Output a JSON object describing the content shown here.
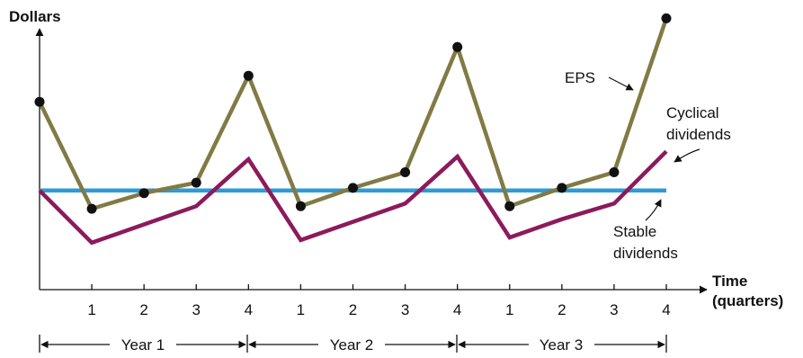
{
  "chart_data": {
    "type": "line",
    "ylabel": "Dollars",
    "xlabel_lines": [
      "Time",
      "(quarters)"
    ],
    "tick_labels": [
      "1",
      "2",
      "3",
      "4",
      "1",
      "2",
      "3",
      "4",
      "1",
      "2",
      "3",
      "4"
    ],
    "year_labels": [
      "Year 1",
      "Year 2",
      "Year 3"
    ],
    "x": [
      0,
      1,
      2,
      3,
      4,
      5,
      6,
      7,
      8,
      9,
      10,
      11,
      12
    ],
    "ylim": [
      0,
      10
    ],
    "series": [
      {
        "name": "EPS",
        "label_lines": [
          "EPS"
        ],
        "color": "#827A45",
        "markers": true,
        "values": [
          7.2,
          3.1,
          3.7,
          4.1,
          8.2,
          3.2,
          3.9,
          4.5,
          9.3,
          3.2,
          3.9,
          4.5,
          10.4
        ]
      },
      {
        "name": "Cyclical dividends",
        "label_lines": [
          "Cyclical",
          "dividends"
        ],
        "color": "#8C1A5C",
        "markers": false,
        "values": [
          3.8,
          1.8,
          2.5,
          3.2,
          5.0,
          1.9,
          2.6,
          3.3,
          5.1,
          2.0,
          2.7,
          3.3,
          5.3
        ]
      },
      {
        "name": "Stable dividends",
        "label_lines": [
          "Stable",
          "dividends"
        ],
        "color": "#2E9BD6",
        "markers": false,
        "values": [
          3.8,
          3.8,
          3.8,
          3.8,
          3.8,
          3.8,
          3.8,
          3.8,
          3.8,
          3.8,
          3.8,
          3.8,
          3.8
        ]
      }
    ],
    "grid": false,
    "legend": "inline annotations"
  }
}
